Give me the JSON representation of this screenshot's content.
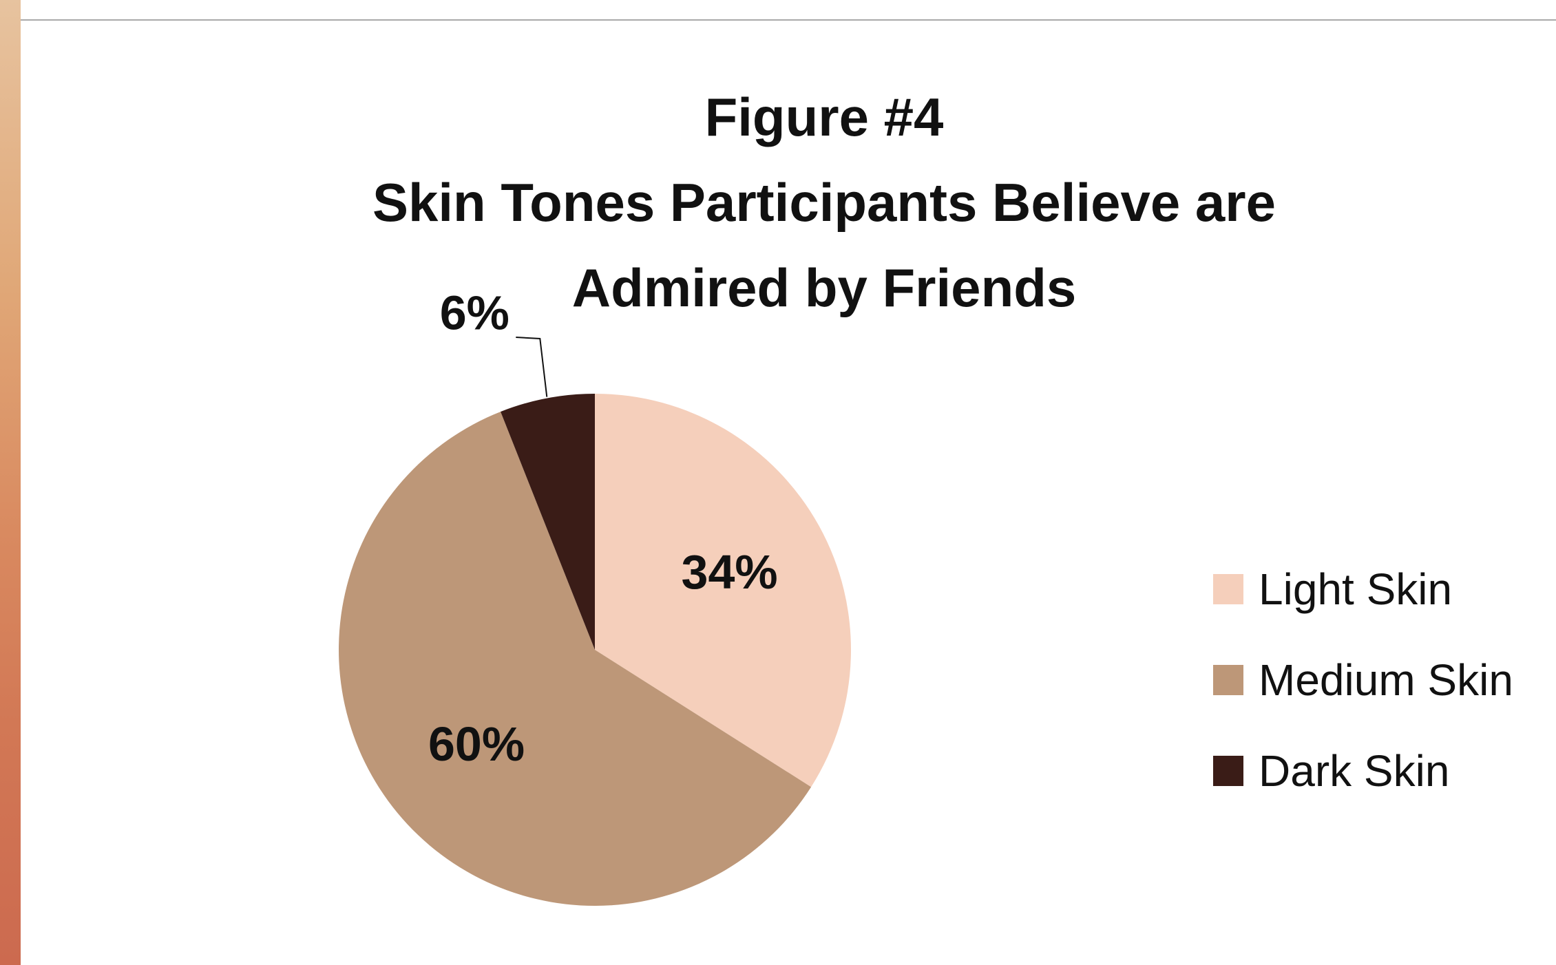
{
  "chart_data": {
    "type": "pie",
    "title_lines": [
      "Figure #4",
      "Skin Tones Participants Believe are",
      "Admired by Friends"
    ],
    "categories": [
      "Light Skin",
      "Medium Skin",
      "Dark Skin"
    ],
    "values": [
      34,
      60,
      6
    ],
    "data_labels": [
      "34%",
      "60%",
      "6%"
    ],
    "colors": [
      "#f5cfbb",
      "#bd9778",
      "#3a1c17"
    ],
    "legend_position": "right"
  }
}
